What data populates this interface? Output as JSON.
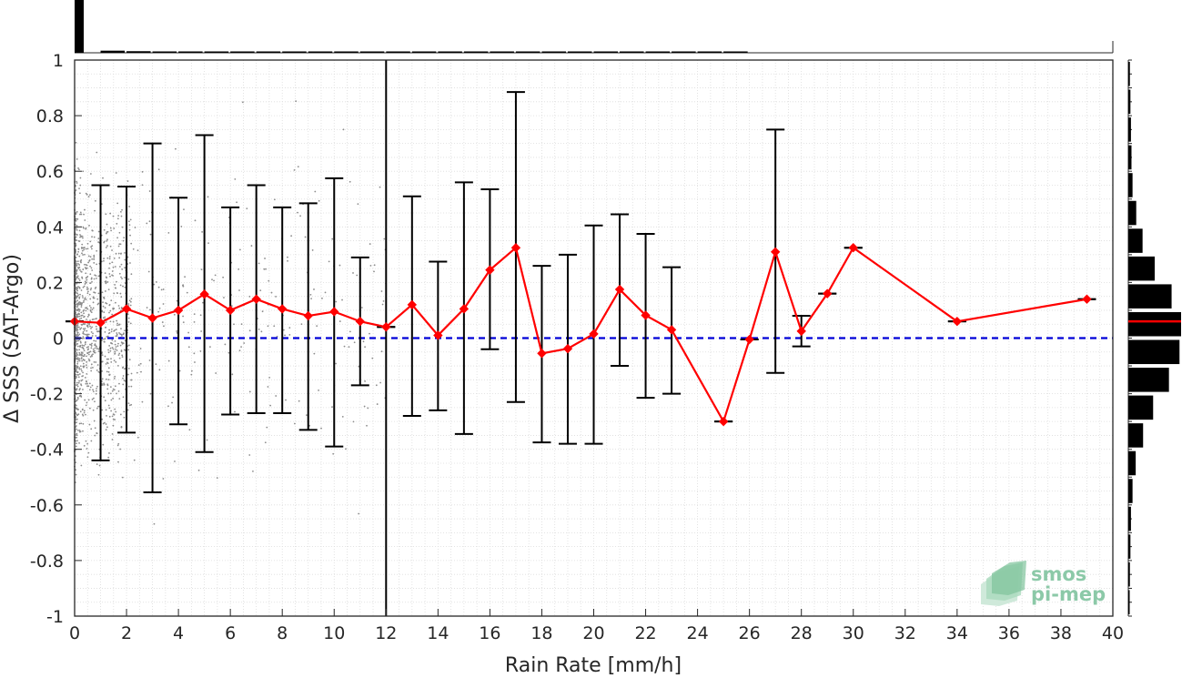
{
  "chart_data": {
    "type": "scatter",
    "title": "",
    "xlabel": "Rain Rate [mm/h]",
    "ylabel": "Δ SSS (SAT-Argo)",
    "xlim": [
      0,
      40
    ],
    "ylim": [
      -1,
      1
    ],
    "xticks": [
      0,
      2,
      4,
      6,
      8,
      10,
      12,
      14,
      16,
      18,
      20,
      22,
      24,
      26,
      28,
      30,
      32,
      34,
      36,
      38,
      40
    ],
    "yticks": [
      -1,
      -0.8,
      -0.6,
      -0.4,
      -0.2,
      0,
      0.2,
      0.4,
      0.6,
      0.8,
      1
    ],
    "grid": true,
    "reference_line": {
      "y": 0,
      "color": "#0000d8",
      "style": "dashed"
    },
    "vertical_line": {
      "x": 12,
      "color": "#000000"
    },
    "series": [
      {
        "color": "#ff0000",
        "x": [
          0,
          1,
          2,
          3,
          4,
          5,
          6,
          7,
          8,
          9,
          10,
          11,
          12,
          13,
          14,
          15,
          16,
          17,
          18,
          19,
          20,
          21,
          22,
          23,
          25,
          26,
          27,
          28,
          29,
          30,
          34,
          39
        ],
        "mean": [
          0.06,
          0.055,
          0.105,
          0.072,
          0.1,
          0.158,
          0.1,
          0.14,
          0.105,
          0.08,
          0.095,
          0.06,
          0.04,
          0.12,
          0.01,
          0.105,
          0.245,
          0.325,
          -0.055,
          -0.038,
          0.015,
          0.175,
          0.082,
          0.03,
          -0.3,
          -0.005,
          0.31,
          0.025,
          0.16,
          0.325,
          0.06,
          0.14
        ],
        "upper": [
          0.06,
          0.55,
          0.545,
          0.7,
          0.505,
          0.73,
          0.47,
          0.55,
          0.47,
          0.485,
          0.575,
          0.29,
          0.04,
          0.51,
          0.275,
          0.56,
          0.535,
          0.885,
          0.26,
          0.3,
          0.405,
          0.445,
          0.375,
          0.255,
          -0.3,
          -0.005,
          0.75,
          0.08,
          0.16,
          0.325,
          0.06,
          0.14
        ],
        "lower": [
          0.06,
          -0.44,
          -0.34,
          -0.555,
          -0.31,
          -0.41,
          -0.275,
          -0.27,
          -0.27,
          -0.33,
          -0.39,
          -0.17,
          0.04,
          -0.28,
          -0.26,
          -0.345,
          -0.04,
          -0.23,
          -0.375,
          -0.38,
          -0.38,
          -0.1,
          -0.215,
          -0.2,
          -0.3,
          -0.005,
          -0.125,
          -0.03,
          0.16,
          0.325,
          0.06,
          0.14
        ]
      }
    ],
    "scatter_color": "#8c8c8c",
    "top_histogram": {
      "bin_width": 1,
      "bins_x": [
        0,
        1,
        2,
        3,
        4,
        5,
        6,
        7,
        8,
        9,
        10,
        11,
        12,
        13,
        14,
        15,
        16,
        17,
        18,
        19,
        20,
        21,
        22,
        23,
        24,
        25
      ],
      "heights": [
        1.0,
        0.04,
        0.03,
        0.025,
        0.02,
        0.02,
        0.015,
        0.015,
        0.012,
        0.012,
        0.01,
        0.01,
        0.01,
        0.008,
        0.008,
        0.007,
        0.007,
        0.006,
        0.006,
        0.005,
        0.005,
        0.005,
        0.005,
        0.004,
        0.004,
        0.004
      ]
    },
    "right_histogram": {
      "bins_y": [
        0.95,
        0.85,
        0.75,
        0.65,
        0.55,
        0.45,
        0.35,
        0.25,
        0.15,
        0.05,
        -0.05,
        -0.15,
        -0.25,
        -0.35,
        -0.45,
        -0.55,
        -0.65,
        -0.75,
        -0.85,
        -0.95
      ],
      "heights": [
        0.03,
        0.04,
        0.05,
        0.06,
        0.08,
        0.15,
        0.27,
        0.5,
        0.82,
        1.0,
        0.97,
        0.77,
        0.47,
        0.28,
        0.14,
        0.08,
        0.05,
        0.04,
        0.03,
        0.02
      ],
      "mean_line_y": 0.06
    }
  },
  "logo": {
    "line1": "smos",
    "line2": "pi-mep"
  }
}
